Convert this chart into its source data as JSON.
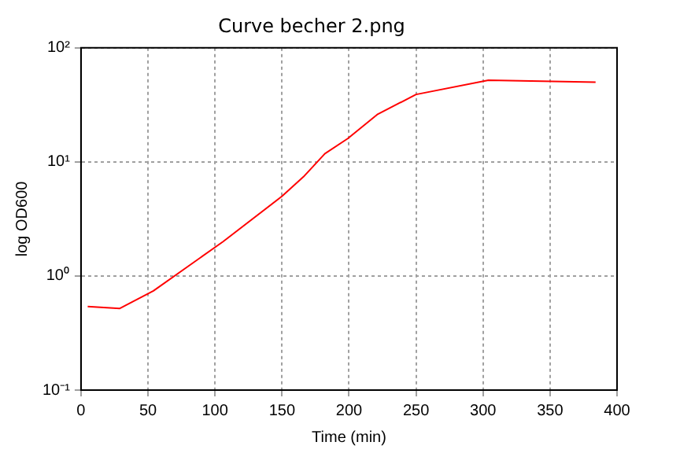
{
  "chart_data": {
    "type": "line",
    "title": "Curve becher 2.png",
    "xlabel": "Time (min)",
    "ylabel": "log OD600",
    "log": "y",
    "grid": true,
    "marker": "none",
    "line_style": "solid",
    "x": [
      5,
      29,
      54,
      106,
      150,
      166,
      182,
      199,
      221,
      250,
      304,
      384
    ],
    "series": [
      {
        "color": "#ff0000",
        "values": [
          0.54,
          0.52,
          0.74,
          2.0,
          5.0,
          7.4,
          11.8,
          16,
          26,
          39,
          52,
          50
        ]
      }
    ],
    "xlim": [
      0,
      400
    ],
    "xticks": [
      0,
      50,
      100,
      150,
      200,
      250,
      300,
      350,
      400
    ],
    "ylim": [
      0.1,
      100
    ],
    "yticks": [
      {
        "value": 0.1,
        "label": "10⁻¹"
      },
      {
        "value": 1,
        "label": "10⁰"
      },
      {
        "value": 10,
        "label": "10¹"
      },
      {
        "value": 100,
        "label": "10²"
      }
    ]
  }
}
